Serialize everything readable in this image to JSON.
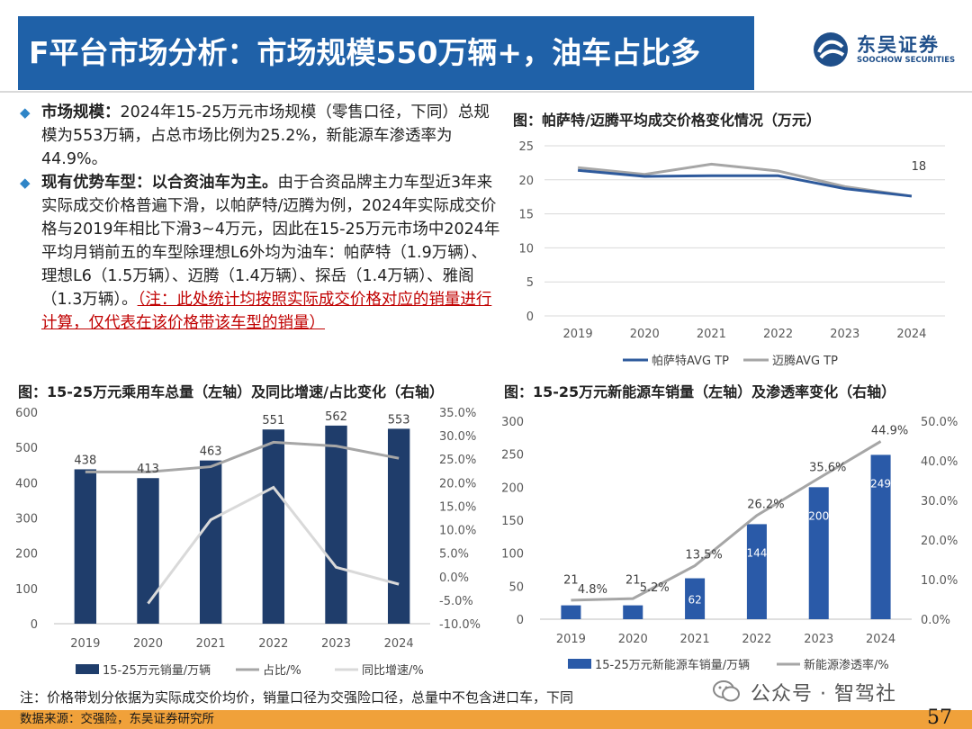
{
  "header": {
    "title": "F平台市场分析：市场规模550万辆+，油车占比多",
    "logo_cn": "东吴证券",
    "logo_en": "SOOCHOW SECURITIES"
  },
  "text": {
    "b1_label": "市场规模：",
    "b1_text": "2024年15-25万元市场规模（零售口径，下同）总规模为553万辆，占总市场比例为25.2%，新能源车渗透率为44.9%。",
    "b2_label": "现有优势车型：以合资油车为主。",
    "b2_text": "由于合资品牌主力车型近3年来实际成交价格普遍下滑，以帕萨特/迈腾为例，2024年实际成交价格与2019年相比下滑3~4万元，因此在15-25万元市场中2024年平均月销前五的车型除理想L6外均为油车：帕萨特（1.9万辆）、理想L6（1.5万辆）、迈腾（1.4万辆）、探岳（1.4万辆）、雅阁（1.3万辆）。",
    "b2_note": "（注：此处统计均按照实际成交价格对应的销量进行计算，仅代表在该价格带该车型的销量）"
  },
  "chart_titles": {
    "c1": "图：帕萨特/迈腾平均成交价格变化情况（万元）",
    "c2": "图：15-25万元乘用车总量（左轴）及同比增速/占比变化（右轴）",
    "c3": "图：15-25万元新能源车销量（左轴）及渗透率变化（右轴）"
  },
  "chart_data": [
    {
      "type": "line",
      "x": [
        "2019",
        "2020",
        "2021",
        "2022",
        "2023",
        "2024"
      ],
      "series": [
        {
          "name": "帕萨特AVG TP",
          "color": "#2e5a9c",
          "values": [
            21.4,
            20.5,
            20.6,
            20.6,
            18.7,
            17.6
          ]
        },
        {
          "name": "迈腾AVG TP",
          "color": "#a6a6a6",
          "values": [
            21.8,
            20.8,
            22.3,
            21.3,
            19.0,
            17.6
          ]
        }
      ],
      "data_labels": [
        {
          "x": "2024",
          "text": "18"
        }
      ],
      "ylim": [
        0,
        25
      ],
      "yticks": [
        "0",
        "5",
        "10",
        "15",
        "20",
        "25"
      ],
      "grid": true,
      "legend": "bottom"
    },
    {
      "type": "bar",
      "categories": [
        "2019",
        "2020",
        "2021",
        "2022",
        "2023",
        "2024"
      ],
      "series": [
        {
          "name": "15-25万元销量/万辆",
          "type": "bar",
          "axis": "left",
          "color": "#1f3d6b",
          "values": [
            438,
            413,
            463,
            551,
            562,
            553
          ],
          "labels": [
            "438",
            "413",
            "463",
            "551",
            "562",
            "553"
          ]
        },
        {
          "name": "占比/%",
          "type": "line",
          "axis": "right",
          "color": "#a6a6a6",
          "values": [
            22.3,
            22.3,
            23.4,
            28.6,
            27.8,
            25.2
          ]
        },
        {
          "name": "同比增速/%",
          "type": "line",
          "axis": "right",
          "color": "#d9d9d9",
          "values": [
            null,
            -5.7,
            12.1,
            19.0,
            2.0,
            -1.6
          ]
        }
      ],
      "ylim_left": [
        0,
        600
      ],
      "yticks_left": [
        "0",
        "100",
        "200",
        "300",
        "400",
        "500",
        "600"
      ],
      "ylim_right": [
        -10,
        35
      ],
      "yticks_right": [
        "-10.0%",
        "-5.0%",
        "0.0%",
        "5.0%",
        "10.0%",
        "15.0%",
        "20.0%",
        "25.0%",
        "30.0%",
        "35.0%"
      ],
      "legend": "bottom"
    },
    {
      "type": "bar",
      "categories": [
        "2019",
        "2020",
        "2021",
        "2022",
        "2023",
        "2024"
      ],
      "series": [
        {
          "name": "15-25万元新能源车销量/万辆",
          "type": "bar",
          "axis": "left",
          "color": "#2a5aa8",
          "values": [
            21,
            21,
            62,
            144,
            200,
            249
          ],
          "labels": [
            "21",
            "21",
            "62",
            "144",
            "200",
            "249"
          ]
        },
        {
          "name": "新能源渗透率/%",
          "type": "line",
          "axis": "right",
          "color": "#a6a6a6",
          "values": [
            4.8,
            5.2,
            13.5,
            26.2,
            35.6,
            44.9
          ],
          "labels": [
            "4.8%",
            "5.2%",
            "13.5%",
            "26.2%",
            "35.6%",
            "44.9%"
          ]
        }
      ],
      "ylim_left": [
        0,
        300
      ],
      "yticks_left": [
        "0",
        "50",
        "100",
        "150",
        "200",
        "250",
        "300"
      ],
      "ylim_right": [
        0,
        50
      ],
      "yticks_right": [
        "0.0%",
        "10.0%",
        "20.0%",
        "30.0%",
        "40.0%",
        "50.0%"
      ],
      "legend": "bottom"
    }
  ],
  "footer": {
    "note": "注：价格带划分依据为实际成交价均价，销量口径为交强险口径，总量中不包含进口车，下同",
    "source": "数据来源：交强险，东吴证券研究所",
    "page": "57",
    "wechat": "公众号 · 智驾社"
  },
  "colors": {
    "title_bg": "#1f61a8",
    "footer_bar": "#f0a13a",
    "accent_red": "#c00000"
  }
}
